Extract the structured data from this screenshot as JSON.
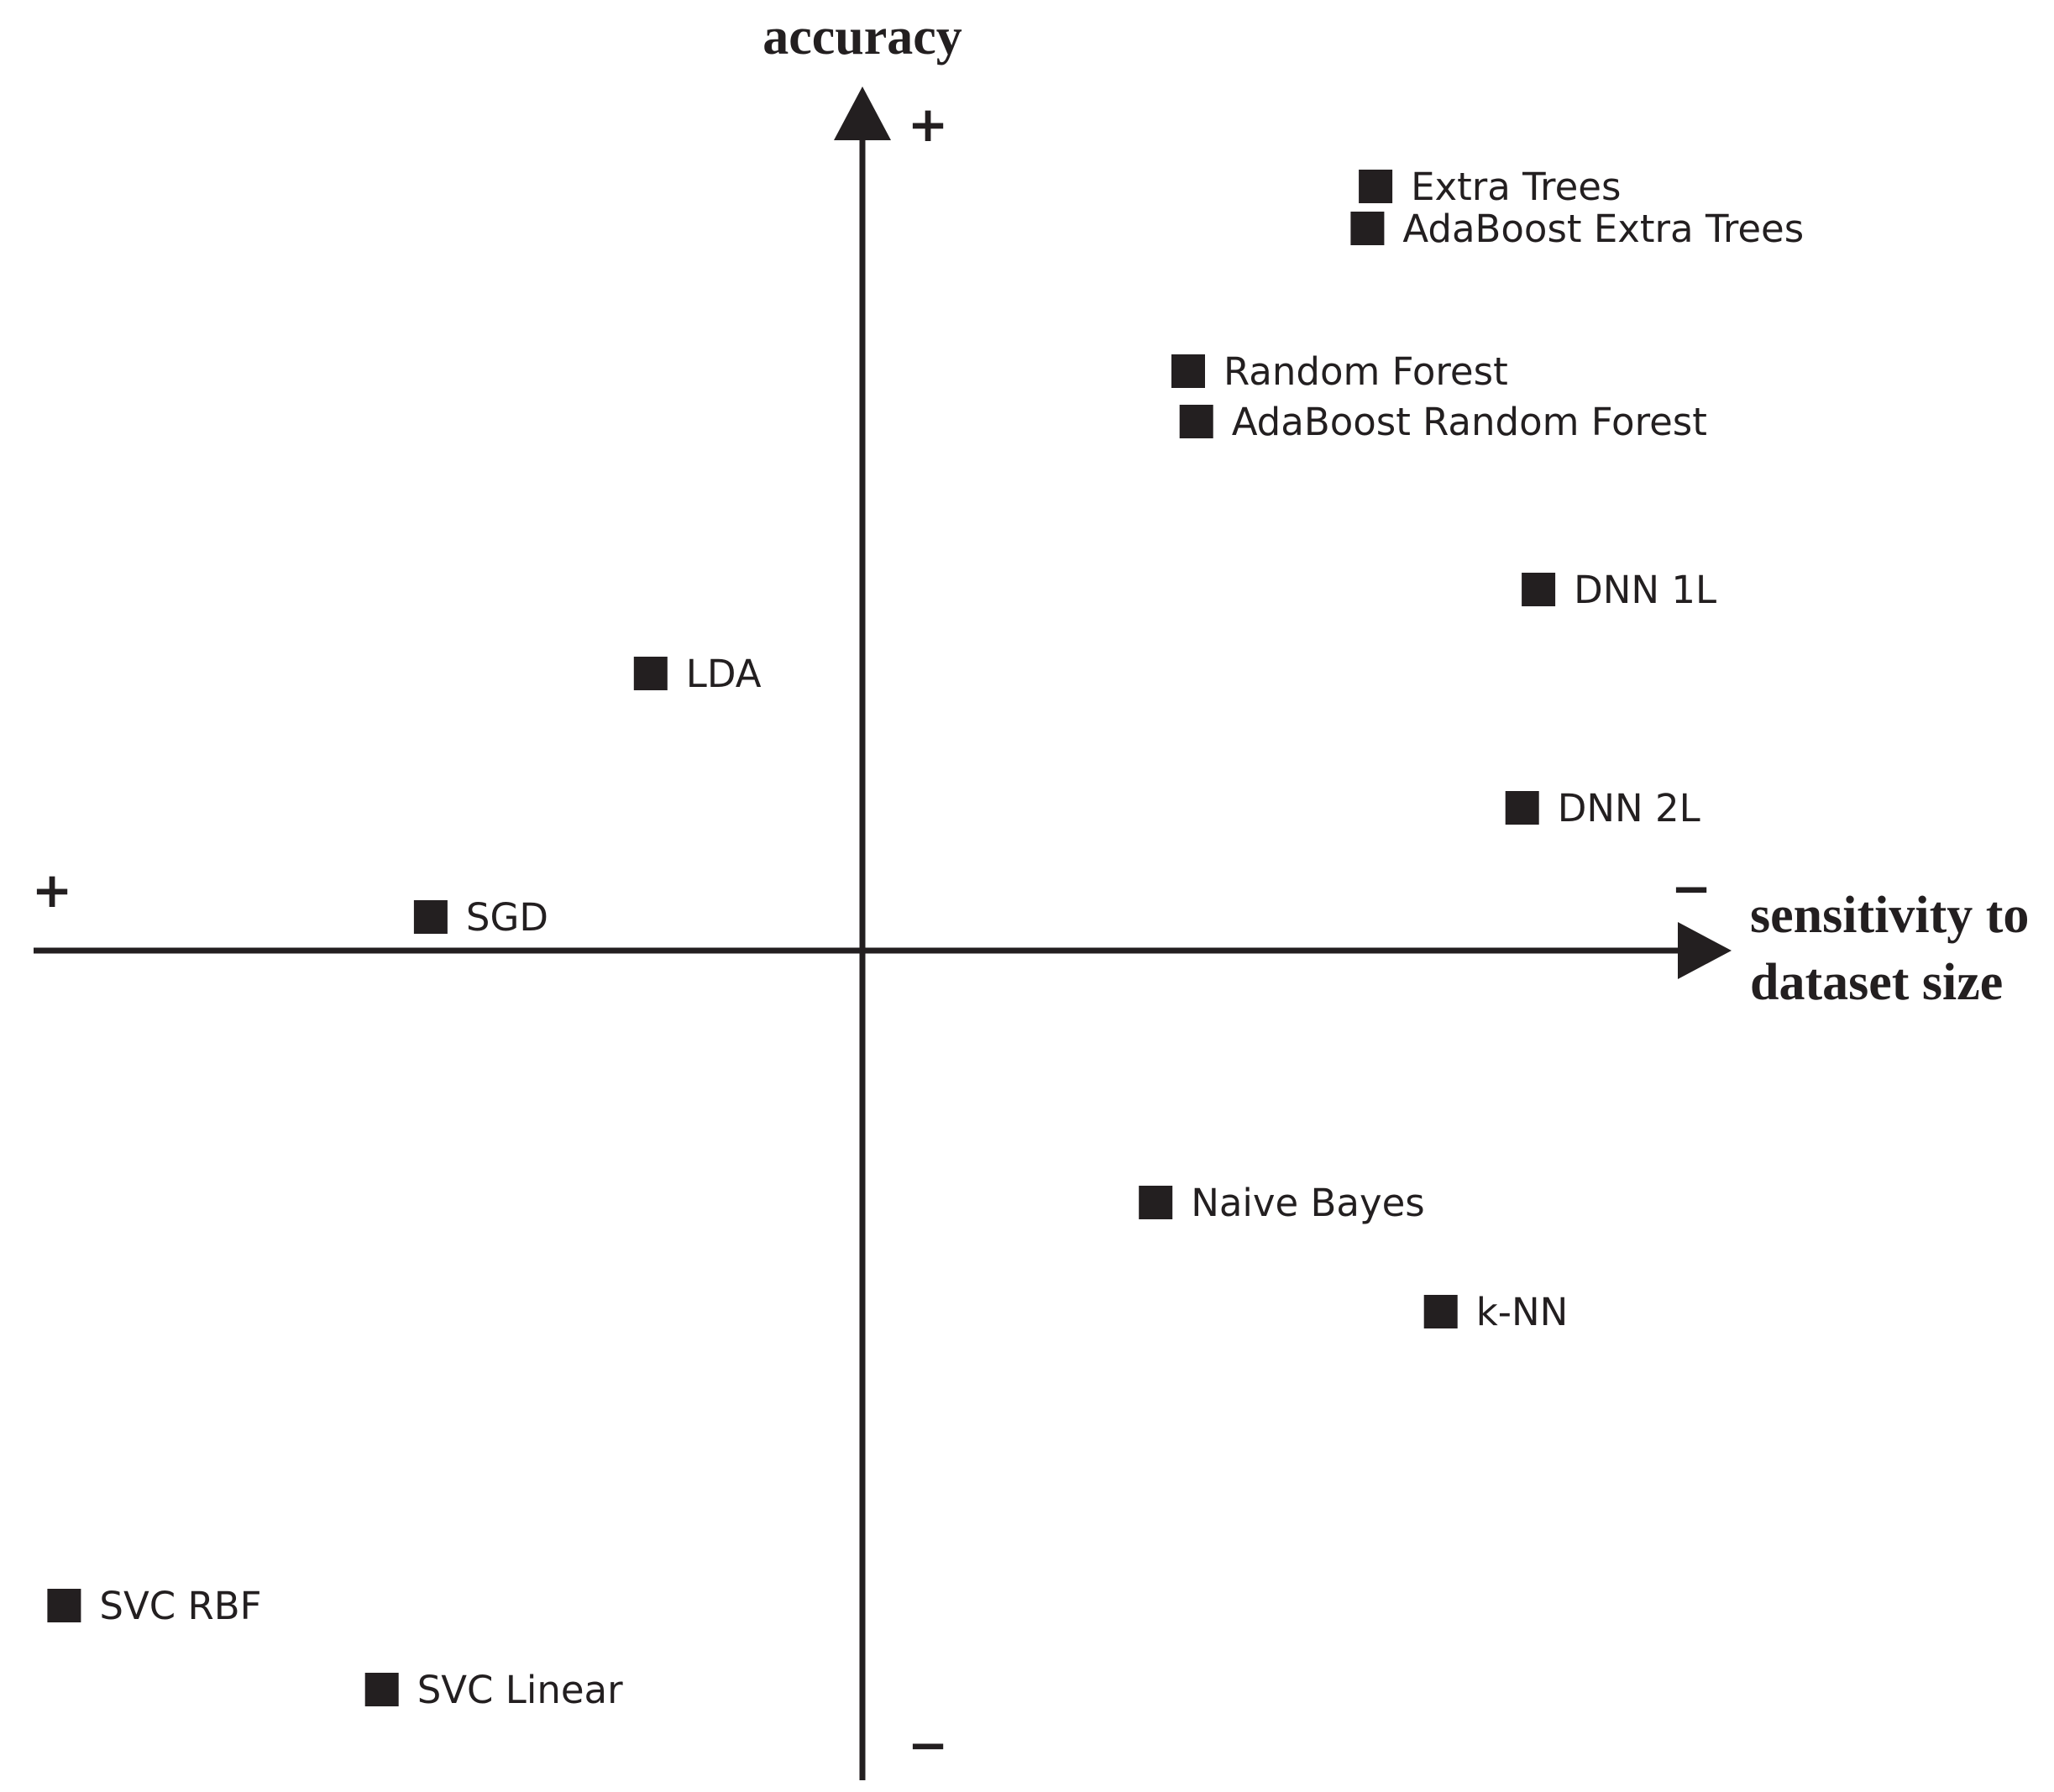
{
  "chart_data": {
    "type": "scatter",
    "title": "",
    "xlabel_lines": [
      "sensitivity to",
      "dataset size"
    ],
    "ylabel": "accuracy",
    "x_axis_signs": {
      "left": "+",
      "right": "−"
    },
    "y_axis_signs": {
      "top": "+",
      "bottom": "−"
    },
    "xlim": [
      -1,
      1
    ],
    "ylim": [
      -1,
      1
    ],
    "grid": false,
    "points": [
      {
        "label": "Extra Trees",
        "x": 0.63,
        "y": 0.91
      },
      {
        "label": "AdaBoost Extra Trees",
        "x": 0.62,
        "y": 0.86
      },
      {
        "label": "Random Forest",
        "x": 0.4,
        "y": 0.69
      },
      {
        "label": "AdaBoost Random Forest",
        "x": 0.41,
        "y": 0.63
      },
      {
        "label": "DNN 1L",
        "x": 0.83,
        "y": 0.43
      },
      {
        "label": "LDA",
        "x": -0.26,
        "y": 0.33
      },
      {
        "label": "DNN 2L",
        "x": 0.81,
        "y": 0.17
      },
      {
        "label": "SGD",
        "x": -0.53,
        "y": 0.04
      },
      {
        "label": "Naive Bayes",
        "x": 0.36,
        "y": -0.3
      },
      {
        "label": "k-NN",
        "x": 0.71,
        "y": -0.43
      },
      {
        "label": "SVC RBF",
        "x": -0.98,
        "y": -0.78
      },
      {
        "label": "SVC Linear",
        "x": -0.59,
        "y": -0.88
      }
    ]
  },
  "colors": {
    "ink": "#231f20",
    "background": "#ffffff"
  }
}
